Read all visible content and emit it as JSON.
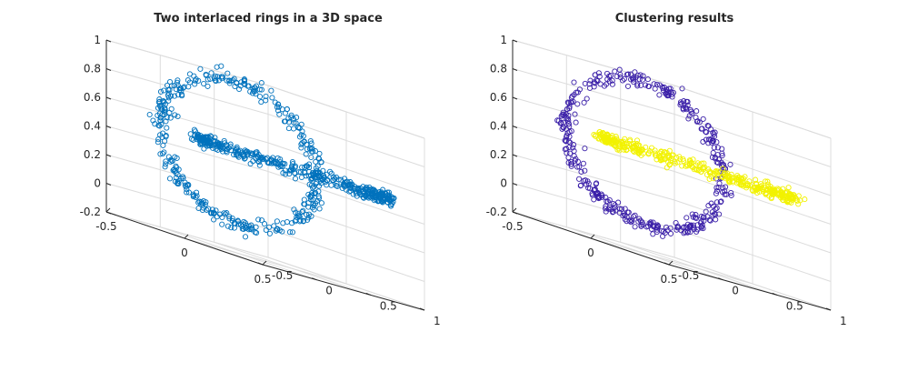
{
  "chart_data": [
    {
      "type": "scatter3d",
      "title": "Two interlaced rings in a 3D space",
      "xlim": [
        -0.5,
        0.5
      ],
      "ylim": [
        -0.5,
        1
      ],
      "zlim": [
        -0.2,
        1
      ],
      "x_ticks": [
        "-0.5",
        "0",
        "0.5"
      ],
      "y_ticks": [
        "-0.5",
        "0",
        "0.5",
        "1"
      ],
      "z_ticks": [
        "-0.2",
        "0",
        "0.2",
        "0.4",
        "0.6",
        "0.8",
        "1"
      ],
      "grid": true,
      "marker": "open-circle",
      "series": [
        {
          "color": "#0072BD",
          "ring_center": [
            0.0,
            0.0,
            0.5
          ],
          "ring_radius": 0.5,
          "ring_plane": "xz",
          "points": 400
        },
        {
          "color": "#0072BD",
          "ring_center": [
            0.0,
            0.5,
            0.5
          ],
          "ring_radius": 0.5,
          "ring_plane": "xy",
          "points": 400
        }
      ]
    },
    {
      "type": "scatter3d",
      "title": "Clustering results",
      "xlim": [
        -0.5,
        0.5
      ],
      "ylim": [
        -0.5,
        1
      ],
      "zlim": [
        -0.2,
        1
      ],
      "x_ticks": [
        "-0.5",
        "0",
        "0.5"
      ],
      "y_ticks": [
        "-0.5",
        "0",
        "0.5",
        "1"
      ],
      "z_ticks": [
        "-0.2",
        "0",
        "0.2",
        "0.4",
        "0.6",
        "0.8",
        "1"
      ],
      "grid": true,
      "marker": "open-circle",
      "series": [
        {
          "color": "#3A1FA8",
          "ring_center": [
            0.0,
            0.0,
            0.5
          ],
          "ring_radius": 0.5,
          "ring_plane": "xz",
          "points": 400
        },
        {
          "color": "#F2F200",
          "ring_center": [
            0.0,
            0.5,
            0.5
          ],
          "ring_radius": 0.5,
          "ring_plane": "xy",
          "points": 400
        }
      ]
    }
  ]
}
